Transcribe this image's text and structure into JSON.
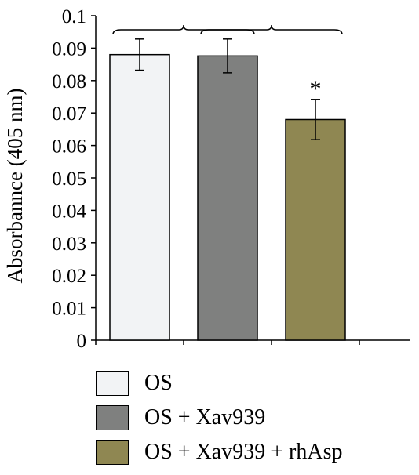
{
  "chart_data": {
    "type": "bar",
    "ylabel": "Absorbannce (405 nm)",
    "ylim": [
      0,
      0.1
    ],
    "yticks": [
      "0",
      "0.01",
      "0.02",
      "0.03",
      "0.04",
      "0.05",
      "0.06",
      "0.07",
      "0.08",
      "0.09",
      "0.1"
    ],
    "categories": [
      "OS",
      "OS + Xav939",
      "OS + Xav939 + rhAsp"
    ],
    "values": [
      0.088,
      0.0876,
      0.068
    ],
    "errors": [
      0.0048,
      0.0052,
      0.0062
    ],
    "colors": [
      "#f2f3f5",
      "#7f807f",
      "#8f8752"
    ],
    "significance": [
      "",
      "",
      "*"
    ],
    "comparison_brackets": [
      [
        0,
        1
      ],
      [
        1,
        2
      ]
    ],
    "grid": false,
    "legend_position": "bottom"
  }
}
